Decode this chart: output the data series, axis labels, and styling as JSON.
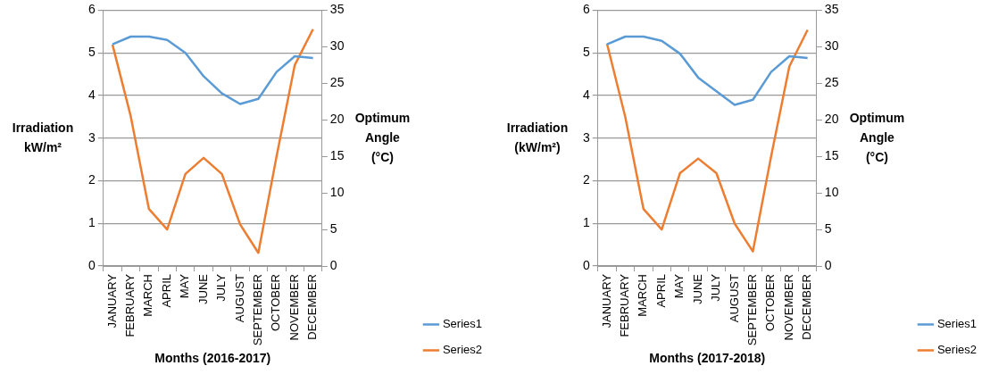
{
  "chart_data": [
    {
      "type": "line",
      "xlabel": "Months (2016-2017)",
      "ylabel": "Irradiation\nkW/m²",
      "y2label": "Optimum\nAngle\n(°C)",
      "categories": [
        "JANUARY",
        "FEBRUARY",
        "MARCH",
        "APRIL",
        "MAY",
        "JUNE",
        "JULY",
        "AUGUST",
        "SEPTEMBER",
        "OCTOBER",
        "NOVEMBER",
        "DECEMBER"
      ],
      "series": [
        {
          "name": "Series1",
          "color": "#5b9bd5",
          "values": [
            5.2,
            5.38,
            5.38,
            5.3,
            5.0,
            4.45,
            4.05,
            3.8,
            3.92,
            4.55,
            4.92,
            4.88
          ]
        },
        {
          "name": "Series2",
          "color": "#ed7d31",
          "axis": "y2",
          "values": [
            30.3,
            20.5,
            7.8,
            5.0,
            12.6,
            14.8,
            12.6,
            5.7,
            1.8,
            15.0,
            27.5,
            32.4
          ]
        }
      ],
      "ylim": [
        0,
        6
      ],
      "yticks": [
        0,
        1,
        2,
        3,
        4,
        5,
        6
      ],
      "y2lim": [
        0,
        35
      ],
      "y2ticks": [
        0,
        5,
        10,
        15,
        20,
        25,
        30,
        35
      ],
      "grid": "y",
      "legend": "right",
      "marker": "none"
    },
    {
      "type": "line",
      "xlabel": "Months (2017-2018)",
      "ylabel": "Irradiation\n(kW/m²)",
      "y2label": "Optimum\nAngle\n(°C)",
      "categories": [
        "JANUARY",
        "FEBRUARY",
        "MARCH",
        "APRIL",
        "MAY",
        "JUNE",
        "JULY",
        "AUGUST",
        "SEPTEMBER",
        "OCTOBER",
        "NOVEMBER",
        "DECEMBER"
      ],
      "series": [
        {
          "name": "Series1",
          "color": "#5b9bd5",
          "values": [
            5.2,
            5.38,
            5.38,
            5.28,
            4.98,
            4.42,
            4.1,
            3.78,
            3.9,
            4.55,
            4.92,
            4.88
          ]
        },
        {
          "name": "Series2",
          "color": "#ed7d31",
          "axis": "y2",
          "values": [
            30.4,
            20.4,
            7.8,
            5.0,
            12.7,
            14.7,
            12.7,
            5.8,
            2.0,
            15.0,
            27.3,
            32.3
          ]
        }
      ],
      "ylim": [
        0,
        6
      ],
      "yticks": [
        0,
        1,
        2,
        3,
        4,
        5,
        6
      ],
      "y2lim": [
        0,
        35
      ],
      "y2ticks": [
        0,
        5,
        10,
        15,
        20,
        25,
        30,
        35
      ],
      "grid": "y",
      "legend": "right",
      "marker": "none"
    }
  ]
}
